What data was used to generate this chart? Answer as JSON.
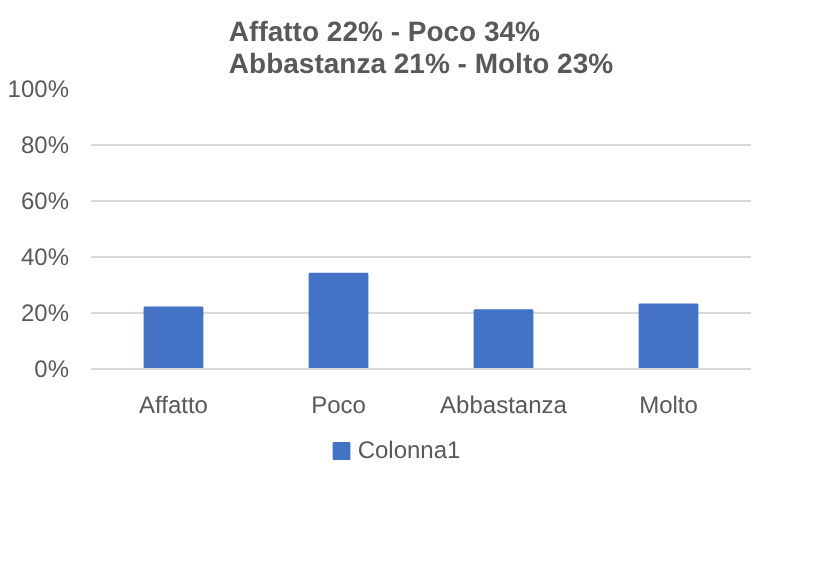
{
  "chart_data": {
    "type": "bar",
    "title": "Affatto 22% - Poco 34%\nAbbastanza 21% - Molto 23%",
    "categories": [
      "Affatto",
      "Poco",
      "Abbastanza",
      "Molto"
    ],
    "series": [
      {
        "name": "Colonna1",
        "color": "#4472c4",
        "values": [
          22,
          34,
          21,
          23
        ]
      }
    ],
    "ylim": [
      0,
      100
    ],
    "yticks": [
      {
        "value": 0,
        "label": "0%"
      },
      {
        "value": 20,
        "label": "20%"
      },
      {
        "value": 40,
        "label": "40%"
      },
      {
        "value": 60,
        "label": "60%"
      },
      {
        "value": 80,
        "label": "80%"
      },
      {
        "value": 100,
        "label": "100%"
      }
    ],
    "grid": "y",
    "legend": "bottom"
  }
}
